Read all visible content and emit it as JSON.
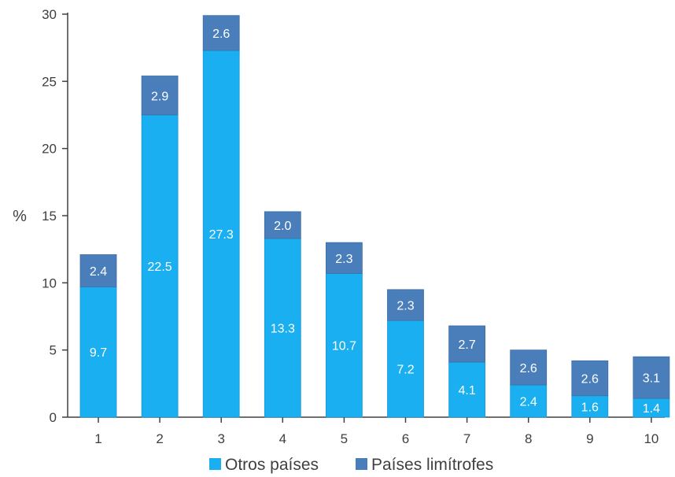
{
  "chart_data": {
    "type": "bar",
    "stacked": true,
    "categories": [
      "1",
      "2",
      "3",
      "4",
      "5",
      "6",
      "7",
      "8",
      "9",
      "10"
    ],
    "series": [
      {
        "name": "Otros países",
        "color": "#1AAFF0",
        "values": [
          9.7,
          22.5,
          27.3,
          13.3,
          10.7,
          7.2,
          4.1,
          2.4,
          1.6,
          1.4
        ]
      },
      {
        "name": "Países limítrofes",
        "color": "#4A7EBB",
        "values": [
          2.4,
          2.9,
          2.6,
          2.0,
          2.3,
          2.3,
          2.7,
          2.6,
          2.6,
          3.1
        ]
      }
    ],
    "ylabel": "%",
    "xlabel": "",
    "ylim": [
      0,
      30
    ],
    "yticks": [
      "0",
      "5",
      "10",
      "15",
      "20",
      "25",
      "30"
    ],
    "grid": false,
    "legend_position": "bottom"
  }
}
